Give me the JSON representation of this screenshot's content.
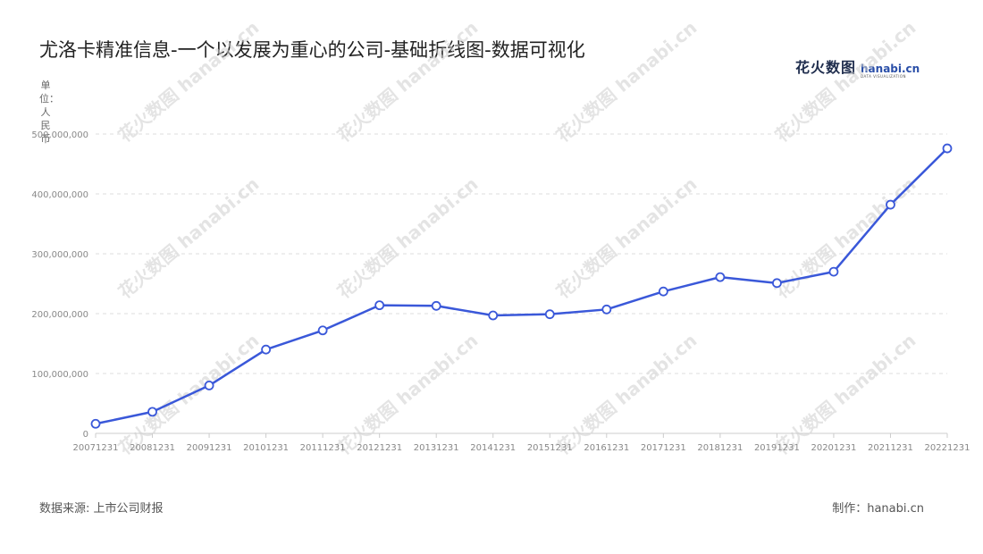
{
  "title": "尤洛卡精准信息-一个以发展为重心的公司-基础折线图-数据可视化",
  "logo": {
    "cn": "花火数图",
    "en": "hanabi.cn",
    "sub": "DATA VISUALIZATION"
  },
  "unit_label": "单位：人民币",
  "footer": {
    "source": "数据来源: 上市公司财报",
    "maker": "制作：hanabi.cn"
  },
  "watermark_text": "花火数图 hanabi.cn",
  "colors": {
    "line": "#3a58d9",
    "grid": "#dddddd",
    "axis": "#cccccc",
    "point_fill": "#ffffff"
  },
  "chart_data": {
    "type": "line",
    "title": "尤洛卡精准信息-一个以发展为重心的公司-基础折线图-数据可视化",
    "xlabel": "",
    "ylabel": "单位：人民币",
    "grid": true,
    "ylim": [
      0,
      500000000
    ],
    "yticks": [
      0,
      100000000,
      200000000,
      300000000,
      400000000,
      500000000
    ],
    "ytick_labels": [
      "0",
      "100,000,000",
      "200,000,000",
      "300,000,000",
      "400,000,000",
      "500,000,000"
    ],
    "categories": [
      "20071231",
      "20081231",
      "20091231",
      "20101231",
      "20111231",
      "20121231",
      "20131231",
      "20141231",
      "20151231",
      "20161231",
      "20171231",
      "20181231",
      "20191231",
      "20201231",
      "20211231",
      "20221231"
    ],
    "series": [
      {
        "values": [
          16000000,
          36000000,
          80000000,
          140000000,
          172000000,
          214000000,
          213000000,
          197000000,
          199000000,
          207000000,
          237000000,
          261000000,
          251000000,
          270000000,
          382000000,
          476000000
        ]
      }
    ]
  }
}
